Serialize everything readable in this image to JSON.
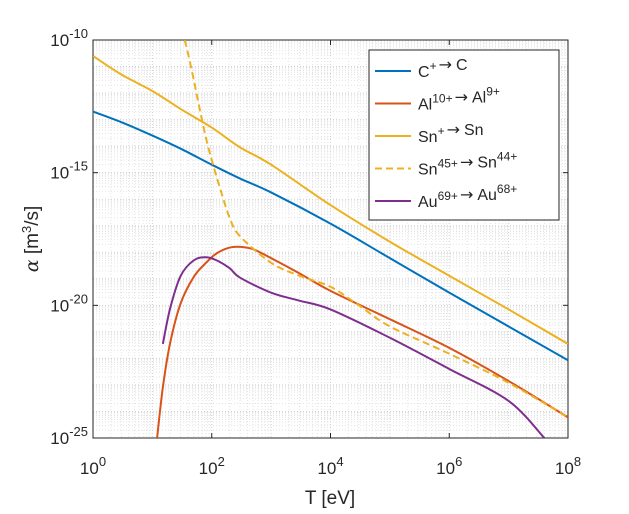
{
  "chart_data": {
    "type": "line",
    "title": "",
    "xlabel": "T [eV]",
    "ylabel_parts": {
      "symbol": "α",
      "open": " [m",
      "exp": "3",
      "close": "/s]"
    },
    "xscale": "log",
    "yscale": "log",
    "xlim": [
      1,
      100000000
    ],
    "ylim": [
      1e-25,
      1e-10
    ],
    "grid": "on (major and minor, dotted)",
    "legend_location": "top-right",
    "x_ticks": [
      {
        "value": 1,
        "base": "10",
        "exp": "0"
      },
      {
        "value": 100,
        "base": "10",
        "exp": "2"
      },
      {
        "value": 10000,
        "base": "10",
        "exp": "4"
      },
      {
        "value": 1000000,
        "base": "10",
        "exp": "6"
      },
      {
        "value": 100000000,
        "base": "10",
        "exp": "8"
      }
    ],
    "y_ticks": [
      {
        "value": 1e-10,
        "base": "10",
        "exp": "-10"
      },
      {
        "value": 1e-15,
        "base": "10",
        "exp": "-15"
      },
      {
        "value": 1e-20,
        "base": "10",
        "exp": "-20"
      },
      {
        "value": 1e-25,
        "base": "10",
        "exp": "-25"
      }
    ],
    "series": [
      {
        "legend": {
          "a": "C",
          "a_sup": "+",
          "arrow": "→",
          "b": "C",
          "b_sup": ""
        },
        "color": "#0072BD",
        "dash": "solid",
        "x": [
          1,
          3,
          10,
          30,
          100,
          300,
          1000,
          10000,
          100000,
          1000000,
          10000000,
          100000000
        ],
        "y": [
          2e-13,
          8e-14,
          2.5e-14,
          8e-15,
          2e-15,
          6e-16,
          1.8e-16,
          1.2e-17,
          6e-19,
          3e-20,
          1.6e-21,
          8.5e-23
        ]
      },
      {
        "legend": {
          "a": "Al",
          "a_sup": "10+",
          "arrow": "→",
          "b": "Al",
          "b_sup": "9+"
        },
        "color": "#D95319",
        "dash": "solid",
        "x": [
          12,
          15,
          20,
          30,
          50,
          80,
          120,
          200,
          300,
          500,
          1000,
          3000,
          10000,
          100000,
          1000000,
          10000000,
          100000000
        ],
        "y": [
          1e-25,
          8e-24,
          4e-22,
          1.2e-20,
          1.2e-19,
          4e-19,
          9e-19,
          1.5e-18,
          1.6e-18,
          1.3e-18,
          6e-19,
          1.6e-19,
          3.5e-20,
          3e-21,
          2.5e-22,
          1.4e-23,
          6e-25
        ]
      },
      {
        "legend": {
          "a": "Sn",
          "a_sup": "+",
          "arrow": "→",
          "b": "Sn",
          "b_sup": ""
        },
        "color": "#EDB120",
        "dash": "solid",
        "x": [
          1,
          3,
          10,
          30,
          100,
          300,
          1000,
          10000,
          100000,
          1000000,
          10000000,
          100000000
        ],
        "y": [
          2.5e-11,
          5e-12,
          1.2e-12,
          2.5e-13,
          5e-14,
          9e-15,
          2e-15,
          6e-17,
          2.5e-18,
          1.3e-19,
          7e-21,
          3.5e-22
        ]
      },
      {
        "legend": {
          "a": "Sn",
          "a_sup": "45+",
          "arrow": "→",
          "b": "Sn",
          "b_sup": "44+"
        },
        "color": "#EDB120",
        "dash": "dashed",
        "x": [
          35,
          40,
          50,
          60,
          80,
          100,
          130,
          200,
          300,
          1000,
          3000,
          10000,
          30000,
          100000,
          1000000,
          10000000,
          100000000
        ],
        "y": [
          1e-10,
          3e-11,
          3e-12,
          4e-13,
          2e-14,
          3e-15,
          4e-16,
          2e-17,
          4e-18,
          4e-19,
          1.3e-19,
          5e-20,
          1e-20,
          1.6e-21,
          1.5e-22,
          1.2e-23,
          6e-25
        ]
      },
      {
        "legend": {
          "a": "Au",
          "a_sup": "69+",
          "arrow": "→",
          "b": "Au",
          "b_sup": "68+"
        },
        "color": "#7E2F8E",
        "dash": "solid",
        "x": [
          15,
          20,
          30,
          50,
          80,
          120,
          200,
          300,
          1000,
          3000,
          10000,
          100000,
          1000000,
          10000000,
          40000000
        ],
        "y": [
          3.5e-22,
          8e-21,
          1.3e-19,
          5e-19,
          6.5e-19,
          5e-19,
          2.5e-19,
          1.1e-19,
          3e-20,
          1.5e-20,
          7e-21,
          6e-22,
          4e-23,
          2.5e-24,
          1e-25
        ]
      }
    ]
  }
}
